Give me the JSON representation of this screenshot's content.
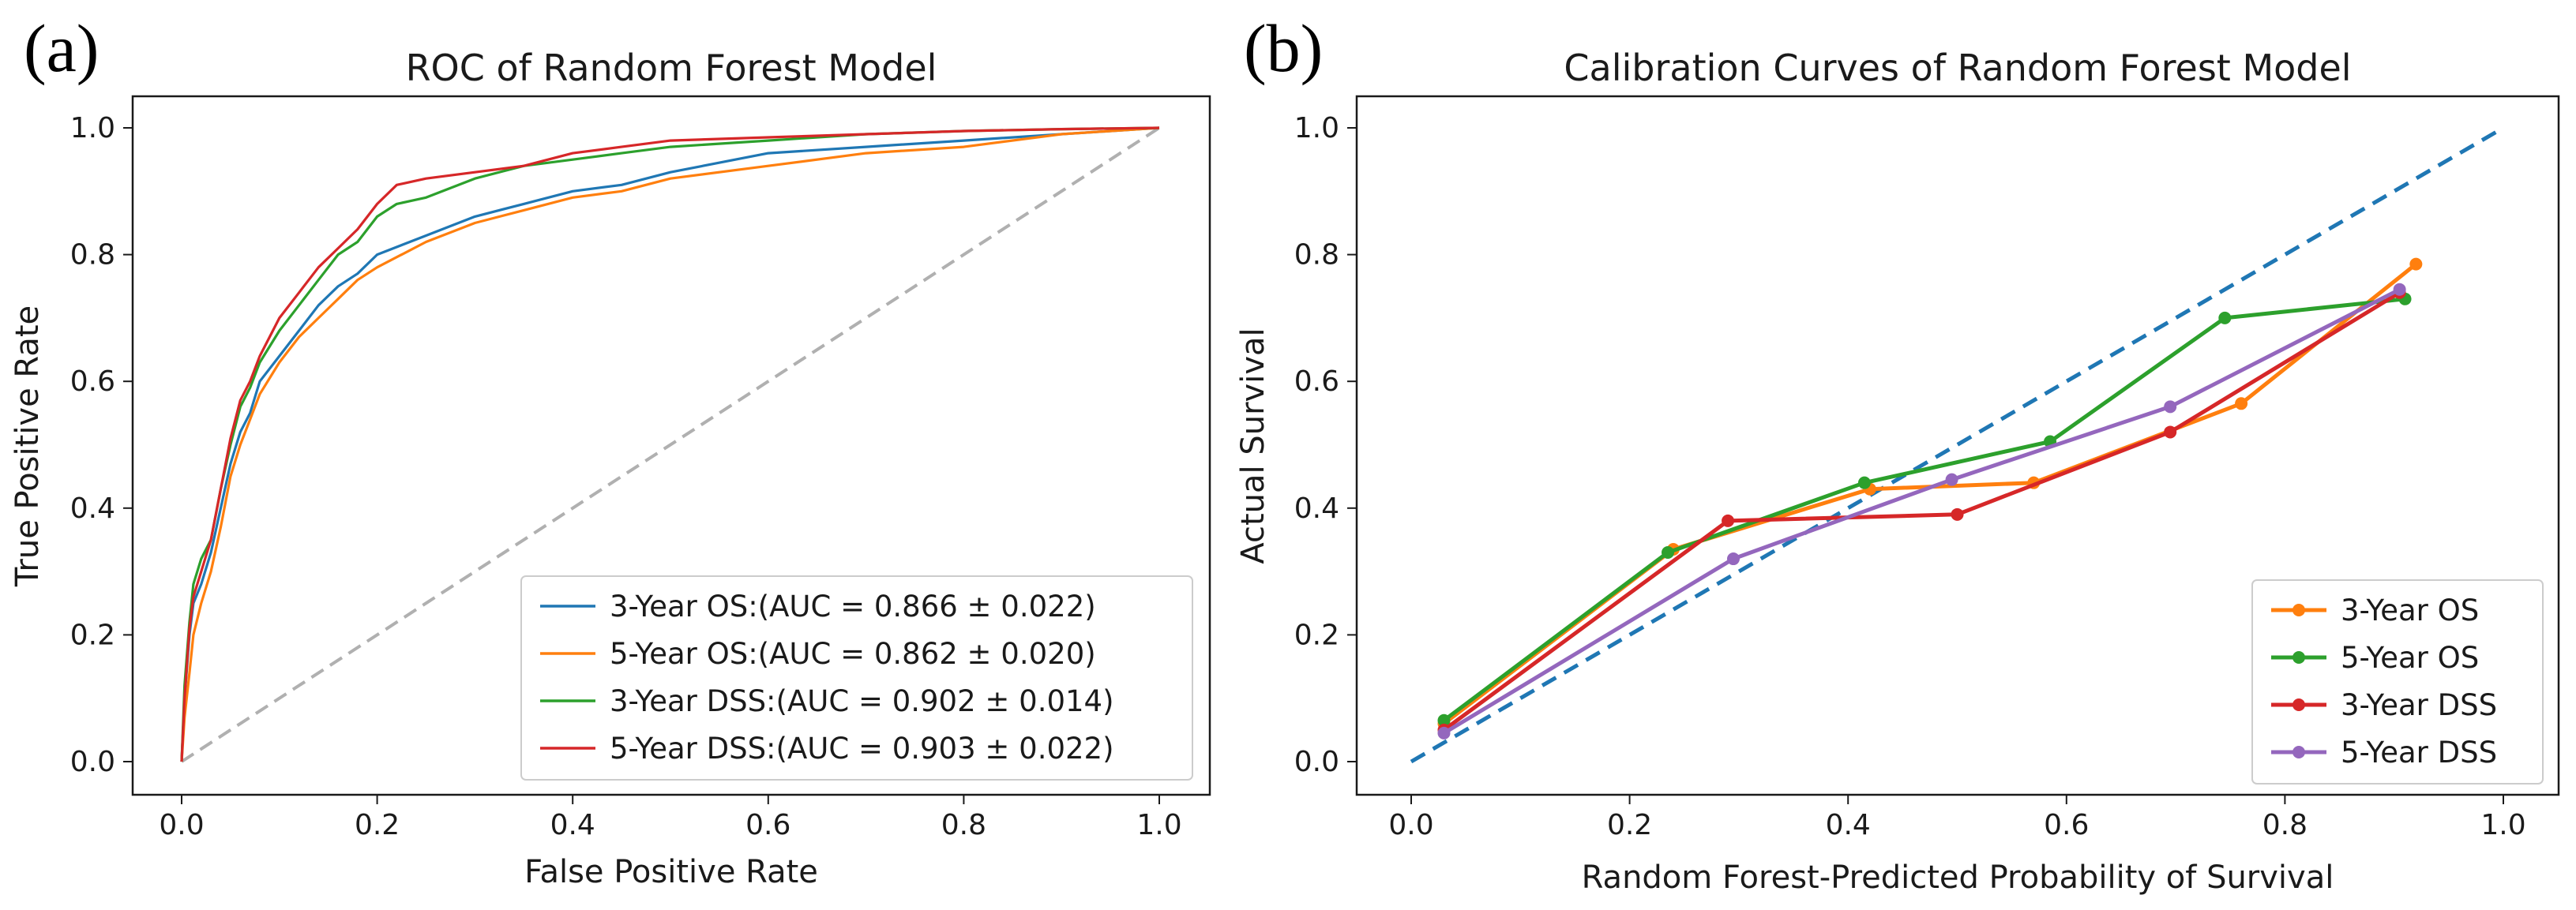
{
  "panels": {
    "a": {
      "letter": "(a)"
    },
    "b": {
      "letter": "(b)"
    }
  },
  "chart_data": [
    {
      "type": "line",
      "title": "ROC of Random Forest Model",
      "xlabel": "False Positive Rate",
      "ylabel": "True Positive Rate",
      "xlim": [
        0.0,
        1.0
      ],
      "ylim": [
        0.0,
        1.0
      ],
      "xticks": [
        "0.0",
        "0.2",
        "0.4",
        "0.6",
        "0.8",
        "1.0"
      ],
      "yticks": [
        "0.0",
        "0.2",
        "0.4",
        "0.6",
        "0.8",
        "1.0"
      ],
      "grid": false,
      "legend_position": "lower-right",
      "reference_line": {
        "name": "chance",
        "x": [
          0,
          1
        ],
        "y": [
          0,
          1
        ],
        "color": "#b0b0b0",
        "style": "dashed"
      },
      "series": [
        {
          "name": "3-Year OS:(AUC = 0.866 ± 0.022)",
          "color": "#1f77b4",
          "x": [
            0,
            0.003,
            0.008,
            0.012,
            0.02,
            0.03,
            0.04,
            0.05,
            0.06,
            0.07,
            0.08,
            0.1,
            0.12,
            0.14,
            0.16,
            0.18,
            0.2,
            0.25,
            0.3,
            0.35,
            0.4,
            0.45,
            0.5,
            0.6,
            0.7,
            0.8,
            0.9,
            1.0
          ],
          "y": [
            0,
            0.1,
            0.2,
            0.25,
            0.28,
            0.33,
            0.4,
            0.47,
            0.52,
            0.55,
            0.6,
            0.64,
            0.68,
            0.72,
            0.75,
            0.77,
            0.8,
            0.83,
            0.86,
            0.88,
            0.9,
            0.91,
            0.93,
            0.96,
            0.97,
            0.98,
            0.99,
            1.0
          ]
        },
        {
          "name": "5-Year OS:(AUC = 0.862 ± 0.020)",
          "color": "#ff7f0e",
          "x": [
            0,
            0.003,
            0.008,
            0.012,
            0.02,
            0.03,
            0.04,
            0.05,
            0.06,
            0.07,
            0.08,
            0.1,
            0.12,
            0.14,
            0.16,
            0.18,
            0.2,
            0.25,
            0.3,
            0.35,
            0.4,
            0.45,
            0.5,
            0.6,
            0.7,
            0.8,
            0.9,
            1.0
          ],
          "y": [
            0,
            0.07,
            0.14,
            0.2,
            0.25,
            0.3,
            0.37,
            0.45,
            0.5,
            0.54,
            0.58,
            0.63,
            0.67,
            0.7,
            0.73,
            0.76,
            0.78,
            0.82,
            0.85,
            0.87,
            0.89,
            0.9,
            0.92,
            0.94,
            0.96,
            0.97,
            0.99,
            1.0
          ]
        },
        {
          "name": "3-Year DSS:(AUC = 0.902 ± 0.014)",
          "color": "#2ca02c",
          "x": [
            0,
            0.003,
            0.008,
            0.012,
            0.02,
            0.03,
            0.04,
            0.05,
            0.06,
            0.07,
            0.08,
            0.1,
            0.12,
            0.14,
            0.16,
            0.18,
            0.2,
            0.22,
            0.25,
            0.3,
            0.35,
            0.4,
            0.45,
            0.5,
            0.6,
            0.7,
            0.8,
            0.9,
            1.0
          ],
          "y": [
            0,
            0.12,
            0.22,
            0.28,
            0.32,
            0.35,
            0.43,
            0.5,
            0.56,
            0.59,
            0.63,
            0.68,
            0.72,
            0.76,
            0.8,
            0.82,
            0.86,
            0.88,
            0.89,
            0.92,
            0.94,
            0.95,
            0.96,
            0.97,
            0.98,
            0.99,
            0.995,
            0.998,
            1.0
          ]
        },
        {
          "name": "5-Year DSS:(AUC = 0.903 ± 0.022)",
          "color": "#d62728",
          "x": [
            0,
            0.003,
            0.008,
            0.012,
            0.02,
            0.03,
            0.04,
            0.05,
            0.06,
            0.07,
            0.08,
            0.1,
            0.12,
            0.14,
            0.16,
            0.18,
            0.2,
            0.22,
            0.25,
            0.3,
            0.35,
            0.4,
            0.45,
            0.5,
            0.6,
            0.7,
            0.8,
            0.9,
            1.0
          ],
          "y": [
            0,
            0.1,
            0.21,
            0.26,
            0.3,
            0.35,
            0.43,
            0.51,
            0.57,
            0.6,
            0.64,
            0.7,
            0.74,
            0.78,
            0.81,
            0.84,
            0.88,
            0.91,
            0.92,
            0.93,
            0.94,
            0.96,
            0.97,
            0.98,
            0.985,
            0.99,
            0.995,
            0.998,
            1.0
          ]
        }
      ]
    },
    {
      "type": "line",
      "title": "Calibration Curves of Random Forest Model",
      "xlabel": "Random Forest-Predicted Probability of Survival",
      "ylabel": "Actual Survival",
      "xlim": [
        -0.05,
        1.05
      ],
      "ylim": [
        -0.035,
        1.06
      ],
      "xticks": [
        "0.0",
        "0.2",
        "0.4",
        "0.6",
        "0.8",
        "1.0"
      ],
      "yticks": [
        "0.0",
        "0.2",
        "0.4",
        "0.6",
        "0.8",
        "1.0"
      ],
      "grid": false,
      "legend_position": "lower-right",
      "reference_line": {
        "name": "perfect-calibration",
        "x": [
          0,
          1
        ],
        "y": [
          0,
          1
        ],
        "color": "#1f77b4",
        "style": "dashed"
      },
      "series": [
        {
          "name": "3-Year OS",
          "color": "#ff7f0e",
          "x": [
            0.03,
            0.24,
            0.42,
            0.57,
            0.76,
            0.92
          ],
          "y": [
            0.06,
            0.335,
            0.43,
            0.44,
            0.565,
            0.785
          ]
        },
        {
          "name": "5-Year OS",
          "color": "#2ca02c",
          "x": [
            0.03,
            0.235,
            0.415,
            0.585,
            0.745,
            0.91
          ],
          "y": [
            0.065,
            0.33,
            0.44,
            0.505,
            0.7,
            0.73
          ]
        },
        {
          "name": "3-Year DSS",
          "color": "#d62728",
          "x": [
            0.03,
            0.29,
            0.5,
            0.695,
            0.905
          ],
          "y": [
            0.05,
            0.38,
            0.39,
            0.52,
            0.74
          ]
        },
        {
          "name": "5-Year DSS",
          "color": "#9467bd",
          "x": [
            0.03,
            0.295,
            0.495,
            0.695,
            0.905
          ],
          "y": [
            0.045,
            0.32,
            0.445,
            0.56,
            0.745
          ]
        }
      ]
    }
  ]
}
